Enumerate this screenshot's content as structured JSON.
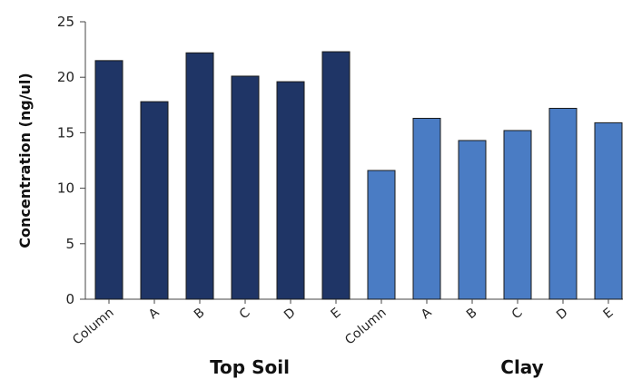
{
  "chart_data": {
    "type": "bar",
    "ylabel": "Concentration (ng/ul)",
    "ylim": [
      0,
      25
    ],
    "yticks": [
      0,
      5,
      10,
      15,
      20,
      25
    ],
    "grid": false,
    "colors": {
      "top_soil": "#1f3566",
      "clay": "#4a7cc4",
      "axis": "#444444"
    },
    "groups": [
      {
        "name": "Top Soil",
        "color_key": "top_soil",
        "categories": [
          "Column",
          "A",
          "B",
          "C",
          "D",
          "E"
        ],
        "values": [
          21.5,
          17.8,
          22.2,
          20.1,
          19.6,
          22.3
        ]
      },
      {
        "name": "Clay",
        "color_key": "clay",
        "categories": [
          "Column",
          "A",
          "B",
          "C",
          "D",
          "E"
        ],
        "values": [
          11.6,
          16.3,
          14.3,
          15.2,
          17.2,
          15.9
        ]
      }
    ]
  }
}
